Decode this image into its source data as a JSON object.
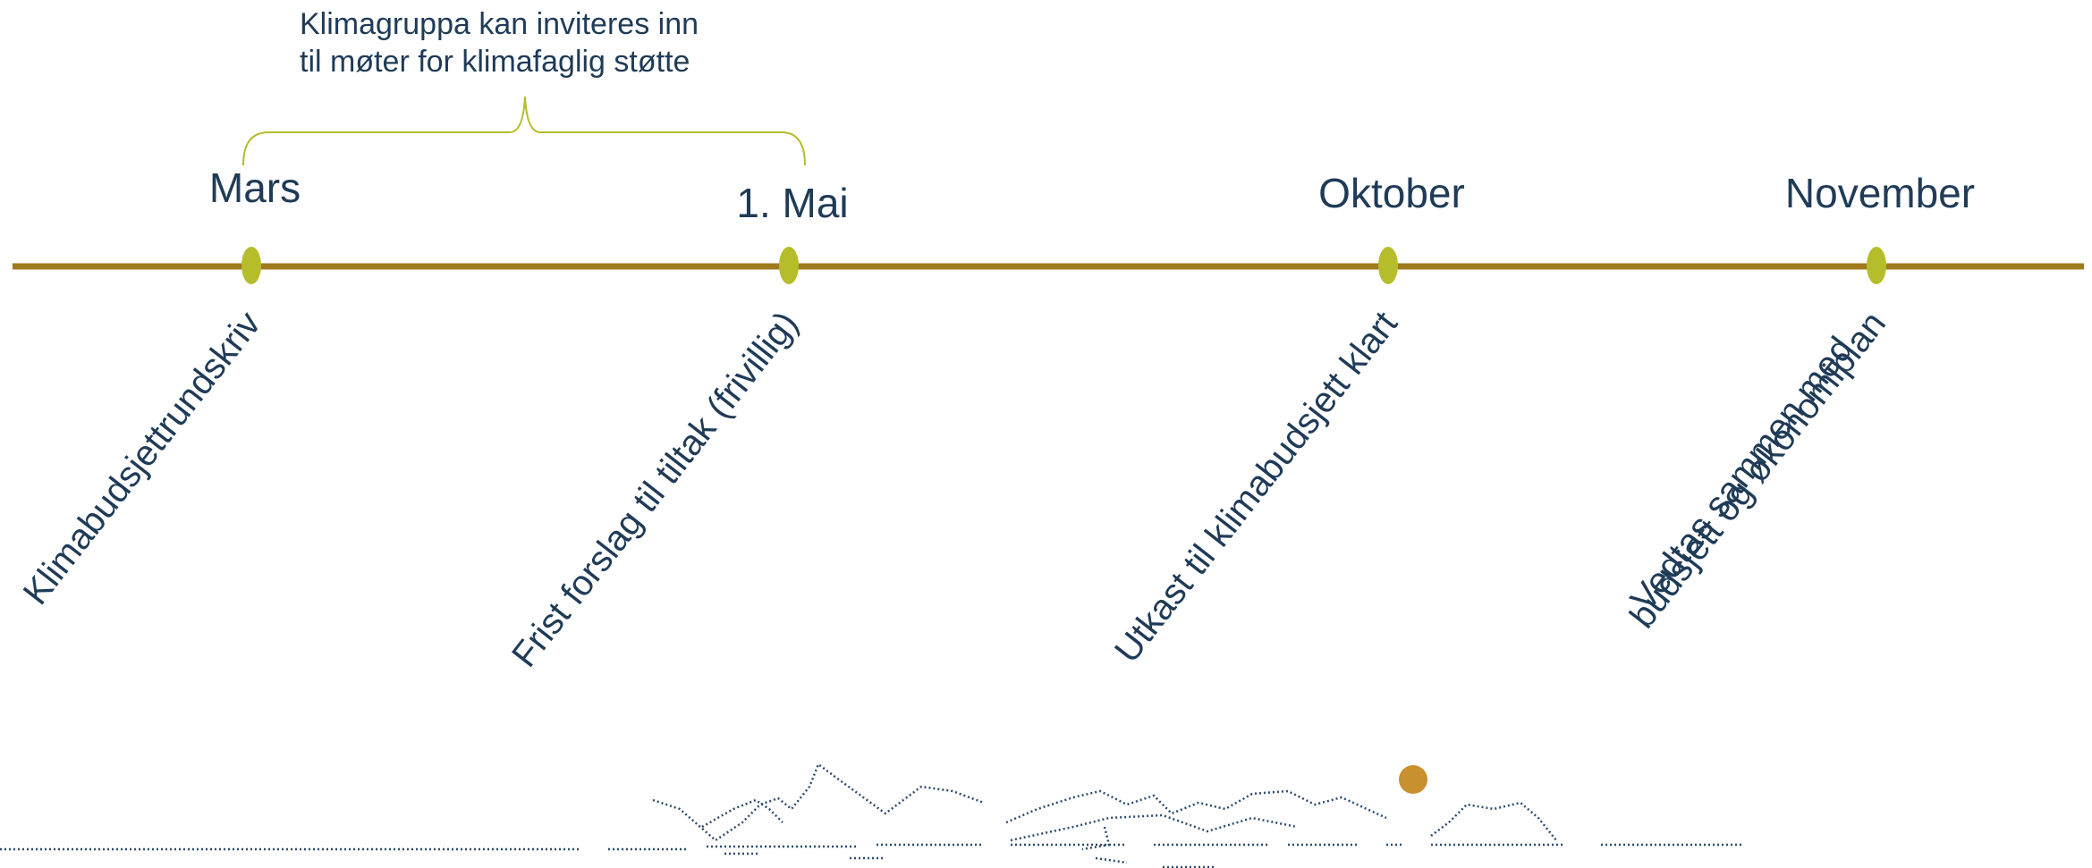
{
  "annotation": {
    "lines": [
      "Klimagruppa kan inviteres inn",
      "til møter for klimafaglig støtte"
    ]
  },
  "milestones": [
    {
      "month": "Mars",
      "description": [
        "Klimabudsjettrundskriv"
      ]
    },
    {
      "month": "1. Mai",
      "description": [
        "Frist forslag til tiltak (frivillig)"
      ]
    },
    {
      "month": "Oktober",
      "description": [
        "Utkast til klimabudsjett klart"
      ]
    },
    {
      "month": "November",
      "description": [
        "Vedtas sammen med",
        "budsjett og økonomiplan"
      ]
    }
  ]
}
